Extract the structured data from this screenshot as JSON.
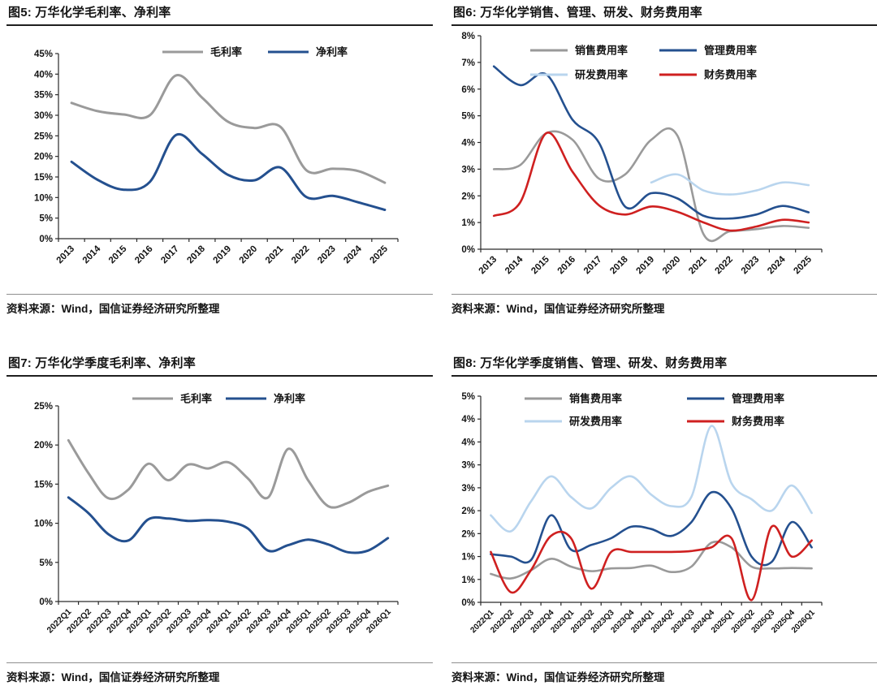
{
  "colors": {
    "gray_series": "#9a9a9a",
    "navy_series": "#24508f",
    "lightblue_series": "#b9d5ee",
    "red_series": "#cf2020",
    "axis": "#2a2a2a",
    "title_rule": "#1f1f1f",
    "source_rule": "#8f8f8f",
    "text": "#141414"
  },
  "panels": [
    {
      "title": "图5: 万华化学毛利率、净利率",
      "source": "资料来源：Wind，国信证券经济研究所整理"
    },
    {
      "title": "图6: 万华化学销售、管理、研发、财务费用率",
      "source": "资料来源：Wind，国信证券经济研究所整理"
    },
    {
      "title": "图7: 万华化学季度毛利率、净利率",
      "source": "资料来源：Wind，国信证券经济研究所整理"
    },
    {
      "title": "图8: 万华化学季度销售、管理、研发、财务费用率",
      "source": "资料来源：Wind，国信证券经济研究所整理"
    }
  ],
  "chart_data": [
    {
      "type": "line",
      "title": "图5: 万华化学毛利率、净利率",
      "xlabel": "",
      "ylabel": "",
      "grid": false,
      "legend_position": "top-center",
      "categories": [
        "2013",
        "2014",
        "2015",
        "2016",
        "2017",
        "2018",
        "2019",
        "2020",
        "2021",
        "2022",
        "2023",
        "2024",
        "2025"
      ],
      "ylim": [
        0,
        45
      ],
      "yticks": {
        "values": [
          0,
          5,
          10,
          15,
          20,
          25,
          30,
          35,
          40,
          45
        ],
        "labels": [
          "0%",
          "5%",
          "10%",
          "15%",
          "20%",
          "25%",
          "30%",
          "35%",
          "40%",
          "45%"
        ]
      },
      "series": [
        {
          "name": "毛利率",
          "color": "#9a9a9a",
          "values": [
            33.0,
            31.0,
            30.2,
            30.0,
            39.7,
            34.3,
            28.4,
            26.9,
            27.2,
            16.6,
            17.0,
            16.4,
            13.6
          ]
        },
        {
          "name": "净利率",
          "color": "#24508f",
          "values": [
            18.7,
            14.3,
            11.9,
            13.8,
            25.2,
            20.6,
            15.5,
            14.2,
            17.3,
            10.1,
            10.4,
            8.8,
            7.0
          ]
        }
      ]
    },
    {
      "type": "line",
      "title": "图6: 万华化学销售、管理、研发、财务费用率",
      "xlabel": "",
      "ylabel": "",
      "grid": false,
      "legend_position": "top-center-two-rows",
      "categories": [
        "2013",
        "2014",
        "2015",
        "2016",
        "2017",
        "2018",
        "2019",
        "2020",
        "2021",
        "2022",
        "2023",
        "2024",
        "2025"
      ],
      "ylim": [
        0,
        8
      ],
      "yticks": {
        "values": [
          0,
          1,
          2,
          3,
          4,
          5,
          6,
          7,
          8
        ],
        "labels": [
          "0%",
          "1%",
          "2%",
          "3%",
          "4%",
          "5%",
          "6%",
          "7%",
          "8%"
        ]
      },
      "series": [
        {
          "name": "销售费用率",
          "color": "#9a9a9a",
          "values": [
            3.0,
            3.15,
            4.35,
            4.1,
            2.65,
            2.8,
            4.1,
            4.25,
            0.55,
            0.67,
            0.75,
            0.87,
            0.8
          ]
        },
        {
          "name": "管理费用率",
          "color": "#24508f",
          "values": [
            6.85,
            6.15,
            6.55,
            4.85,
            4.0,
            1.6,
            2.1,
            1.9,
            1.25,
            1.15,
            1.3,
            1.62,
            1.38
          ]
        },
        {
          "name": "研发费用率",
          "color": "#b9d5ee",
          "values": [
            null,
            null,
            null,
            null,
            null,
            null,
            2.5,
            2.8,
            2.2,
            2.05,
            2.2,
            2.5,
            2.4
          ]
        },
        {
          "name": "财务费用率",
          "color": "#cf2020",
          "values": [
            1.25,
            1.75,
            4.35,
            2.9,
            1.65,
            1.3,
            1.6,
            1.4,
            1.0,
            0.7,
            0.85,
            1.1,
            1.0
          ]
        }
      ]
    },
    {
      "type": "line",
      "title": "图7: 万华化学季度毛利率、净利率",
      "xlabel": "",
      "ylabel": "",
      "grid": false,
      "legend_position": "top-center",
      "categories": [
        "2022Q1",
        "2022Q2",
        "2022Q3",
        "2022Q4",
        "2023Q1",
        "2023Q2",
        "2023Q3",
        "2023Q4",
        "2024Q1",
        "2024Q2",
        "2024Q3",
        "2024Q4",
        "2025Q1",
        "2025Q2",
        "2025Q3",
        "2025Q4",
        "2026Q1"
      ],
      "ylim": [
        0,
        25
      ],
      "yticks": {
        "values": [
          0,
          5,
          10,
          15,
          20,
          25
        ],
        "labels": [
          "0%",
          "5%",
          "10%",
          "15%",
          "20%",
          "25%"
        ]
      },
      "series": [
        {
          "name": "毛利率",
          "color": "#9a9a9a",
          "values": [
            20.6,
            16.4,
            13.2,
            14.3,
            17.6,
            15.5,
            17.5,
            17.0,
            17.8,
            15.7,
            13.3,
            19.5,
            15.5,
            12.2,
            12.6,
            14.0,
            14.8
          ]
        },
        {
          "name": "净利率",
          "color": "#24508f",
          "values": [
            13.3,
            11.3,
            8.6,
            7.8,
            10.5,
            10.6,
            10.3,
            10.4,
            10.2,
            9.3,
            6.5,
            7.2,
            7.9,
            7.3,
            6.3,
            6.5,
            8.1
          ]
        }
      ]
    },
    {
      "type": "line",
      "title": "图8: 万华化学季度销售、管理、研发、财务费用率",
      "xlabel": "",
      "ylabel": "",
      "grid": false,
      "legend_position": "top-center-two-rows",
      "categories": [
        "2022Q1",
        "2022Q2",
        "2022Q3",
        "2022Q4",
        "2023Q1",
        "2023Q2",
        "2023Q3",
        "2023Q4",
        "2024Q1",
        "2024Q2",
        "2024Q3",
        "2024Q4",
        "2025Q1",
        "2025Q2",
        "2025Q3",
        "2025Q4",
        "2026Q1"
      ],
      "ylim": [
        0,
        4.5
      ],
      "yticks": {
        "values": [
          0,
          0.5,
          1,
          1.5,
          2,
          2.5,
          3,
          3.5,
          4,
          4.5
        ],
        "labels": [
          "0%",
          "1%",
          "1%",
          "2%",
          "2%",
          "3%",
          "3%",
          "4%",
          "4%",
          "5%"
        ]
      },
      "series": [
        {
          "name": "销售费用率",
          "color": "#9a9a9a",
          "values": [
            0.62,
            0.52,
            0.7,
            0.95,
            0.78,
            0.68,
            0.74,
            0.75,
            0.8,
            0.66,
            0.78,
            1.3,
            1.2,
            0.78,
            0.74,
            0.75,
            0.74
          ]
        },
        {
          "name": "管理费用率",
          "color": "#24508f",
          "values": [
            1.05,
            1.0,
            0.92,
            1.9,
            1.15,
            1.25,
            1.4,
            1.65,
            1.6,
            1.45,
            1.75,
            2.4,
            2.05,
            1.0,
            0.88,
            1.75,
            1.2
          ]
        },
        {
          "name": "研发费用率",
          "color": "#b9d5ee",
          "values": [
            1.9,
            1.55,
            2.2,
            2.75,
            2.3,
            2.05,
            2.5,
            2.75,
            2.35,
            2.1,
            2.3,
            3.85,
            2.6,
            2.25,
            2.0,
            2.55,
            1.95
          ]
        },
        {
          "name": "财务费用率",
          "color": "#cf2020",
          "values": [
            1.1,
            0.22,
            0.7,
            1.45,
            1.4,
            0.3,
            1.1,
            1.1,
            1.1,
            1.1,
            1.12,
            1.2,
            1.4,
            0.05,
            1.65,
            1.0,
            1.35
          ]
        }
      ]
    }
  ]
}
